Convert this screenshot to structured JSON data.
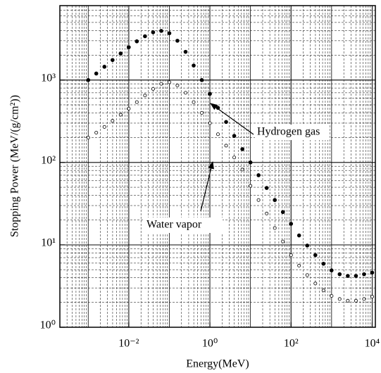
{
  "chart_data": {
    "type": "scatter",
    "x_label": "Energy(MeV)",
    "y_label": "Stopping Power (MeV/(g/cm²))",
    "xlog": true,
    "ylog": true,
    "grid": true,
    "xlim": [
      0.0002,
      12000
    ],
    "ylim": [
      1,
      8000
    ],
    "xticks": [
      {
        "value": 0.01,
        "label": "10⁻²"
      },
      {
        "value": 1,
        "label": "10⁰"
      },
      {
        "value": 100,
        "label": "10²"
      },
      {
        "value": 10000,
        "label": "10⁴"
      }
    ],
    "yticks": [
      {
        "value": 1,
        "label": "10⁰"
      },
      {
        "value": 10,
        "label": "10¹"
      },
      {
        "value": 100,
        "label": "10²"
      },
      {
        "value": 1000,
        "label": "10³"
      }
    ],
    "series": [
      {
        "name": "Hydrogen gas",
        "color": "#000000",
        "marker": "filled",
        "x": [
          0.001,
          0.00158,
          0.00251,
          0.00398,
          0.00631,
          0.01,
          0.0158,
          0.0251,
          0.0398,
          0.0631,
          0.1,
          0.158,
          0.251,
          0.398,
          0.631,
          1,
          1.58,
          2.51,
          3.98,
          6.31,
          10,
          15.8,
          25.1,
          39.8,
          63.1,
          100,
          158,
          251,
          398,
          631,
          1000,
          1580,
          2510,
          3980,
          6310,
          10000
        ],
        "values": [
          1000,
          1200,
          1450,
          1750,
          2100,
          2500,
          2950,
          3400,
          3800,
          3950,
          3700,
          3000,
          2200,
          1500,
          1000,
          680,
          460,
          310,
          210,
          145,
          100,
          70,
          49,
          35,
          25,
          18,
          13,
          9.8,
          7.5,
          5.9,
          4.9,
          4.4,
          4.2,
          4.2,
          4.4,
          4.6
        ]
      },
      {
        "name": "Water vapor",
        "color": "#000000",
        "marker": "open",
        "x": [
          0.001,
          0.00158,
          0.00251,
          0.00398,
          0.00631,
          0.01,
          0.0158,
          0.0251,
          0.0398,
          0.0631,
          0.1,
          0.158,
          0.251,
          0.398,
          0.631,
          1,
          1.58,
          2.51,
          3.98,
          6.31,
          10,
          15.8,
          25.1,
          39.8,
          63.1,
          100,
          158,
          251,
          398,
          631,
          1000,
          1580,
          2510,
          3980,
          6310,
          10000
        ],
        "values": [
          200,
          230,
          270,
          320,
          380,
          450,
          540,
          650,
          780,
          900,
          940,
          860,
          700,
          540,
          400,
          300,
          220,
          160,
          115,
          82,
          52,
          35,
          24,
          16,
          11,
          7.5,
          5.6,
          4.3,
          3.4,
          2.8,
          2.4,
          2.2,
          2.1,
          2.1,
          2.2,
          2.35
        ]
      }
    ]
  }
}
